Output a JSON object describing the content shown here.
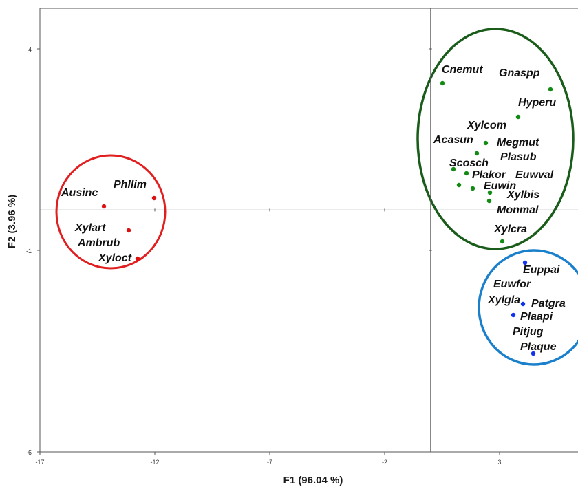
{
  "chart_data": {
    "type": "scatter",
    "xlabel": "F1 (96.04 %)",
    "ylabel": "F2 (3.96 %)",
    "xlim": [
      -17,
      8
    ],
    "ylim": [
      -6,
      5
    ],
    "x_ticks": [
      -17,
      -12,
      -7,
      -2,
      3
    ],
    "y_ticks": [
      4,
      -1,
      -6
    ],
    "grid": false,
    "colors": {
      "red": "#dd1111",
      "green": "#138a13",
      "blue": "#1133ee",
      "red_ring": "#e02020",
      "green_ring": "#1a5c1a",
      "blue_ring": "#1a80cc"
    },
    "points": [
      {
        "label": "Ausinc",
        "x": -14.9,
        "y": 0.05,
        "group": "red"
      },
      {
        "label": "Phllim",
        "x": -12.1,
        "y": 0.3,
        "group": "red"
      },
      {
        "label": "Xylart",
        "x": -13.9,
        "y": -0.5,
        "group": "red"
      },
      {
        "label": "Ambrub",
        "x": -13.9,
        "y": -0.5,
        "group": "red"
      },
      {
        "label": "Xyloct",
        "x": -13.9,
        "y": -0.5,
        "group": "red"
      },
      {
        "label": "Cnemut",
        "x": 0.7,
        "y": 3.2,
        "group": "green"
      },
      {
        "label": "Gnaspp",
        "x": 5.4,
        "y": 3.0,
        "group": "green"
      },
      {
        "label": "Hyperu",
        "x": 3.9,
        "y": 2.2,
        "group": "green"
      },
      {
        "label": "Xylcom",
        "x": 2.6,
        "y": 1.65,
        "group": "green"
      },
      {
        "label": "Acasun",
        "x": 2.2,
        "y": 1.4,
        "group": "green"
      },
      {
        "label": "Megmut",
        "x": 2.2,
        "y": 1.4,
        "group": "green"
      },
      {
        "label": "Scosch",
        "x": 1.2,
        "y": 0.95,
        "group": "green"
      },
      {
        "label": "Plasub",
        "x": 1.8,
        "y": 0.9,
        "group": "green"
      },
      {
        "label": "Plakor",
        "x": 1.4,
        "y": 0.6,
        "group": "green"
      },
      {
        "label": "Euwval",
        "x": 2.0,
        "y": 0.55,
        "group": "green"
      },
      {
        "label": "Euwin",
        "x": 2.8,
        "y": 0.45,
        "group": "green"
      },
      {
        "label": "Xylbis",
        "x": 2.75,
        "y": 0.2,
        "group": "green"
      },
      {
        "label": "Monmal",
        "x": 2.75,
        "y": 0.2,
        "group": "green"
      },
      {
        "label": "Xylcra",
        "x": 3.3,
        "y": -0.75,
        "group": "green"
      },
      {
        "label": "Euppai",
        "x": 4.4,
        "y": -1.3,
        "group": "blue"
      },
      {
        "label": "Euwfor",
        "x": 4.3,
        "y": -2.3,
        "group": "blue"
      },
      {
        "label": "Xylgla",
        "x": 3.9,
        "y": -2.6,
        "group": "blue"
      },
      {
        "label": "Patgra",
        "x": 3.9,
        "y": -2.6,
        "group": "blue"
      },
      {
        "label": "Plaapi",
        "x": 4.7,
        "y": -3.5,
        "group": "blue"
      },
      {
        "label": "Pitjug",
        "x": 4.7,
        "y": -3.5,
        "group": "blue"
      },
      {
        "label": "Plaque",
        "x": 4.7,
        "y": -3.5,
        "group": "blue"
      }
    ]
  }
}
